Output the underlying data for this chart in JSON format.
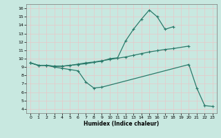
{
  "bg_color": "#c8e8e0",
  "grid_color_major": "#e8c8c8",
  "line_color": "#2a7a6a",
  "xlabel": "Humidex (Indice chaleur)",
  "xlim": [
    -0.5,
    23.5
  ],
  "ylim": [
    3.5,
    16.5
  ],
  "yticks": [
    4,
    5,
    6,
    7,
    8,
    9,
    10,
    11,
    12,
    13,
    14,
    15,
    16
  ],
  "xticks": [
    0,
    1,
    2,
    3,
    4,
    5,
    6,
    7,
    8,
    9,
    10,
    11,
    12,
    13,
    14,
    15,
    16,
    17,
    18,
    19,
    20,
    21,
    22,
    23
  ],
  "series1_x": [
    0,
    1,
    2,
    3,
    4,
    5,
    6,
    7,
    8,
    9,
    10,
    11,
    12,
    13,
    14,
    15,
    16,
    17,
    18
  ],
  "series1_y": [
    9.5,
    9.2,
    9.2,
    9.1,
    9.1,
    9.2,
    9.3,
    9.4,
    9.55,
    9.7,
    10.0,
    10.1,
    12.1,
    13.5,
    14.7,
    15.8,
    15.0,
    13.5,
    13.8
  ],
  "series2_x": [
    0,
    1,
    2,
    3,
    4,
    5,
    6,
    7,
    8,
    9,
    20,
    21,
    22,
    23
  ],
  "series2_y": [
    9.5,
    9.2,
    9.2,
    9.0,
    8.85,
    8.7,
    8.55,
    7.2,
    6.5,
    6.6,
    9.3,
    6.5,
    4.4,
    4.3
  ],
  "series2_gap_connect": true,
  "series3_x": [
    0,
    1,
    2,
    3,
    4,
    5,
    6,
    7,
    8,
    9,
    10,
    11,
    12,
    13,
    14,
    15,
    16,
    17,
    18,
    20
  ],
  "series3_y": [
    9.5,
    9.2,
    9.2,
    9.1,
    9.1,
    9.2,
    9.35,
    9.5,
    9.6,
    9.75,
    9.9,
    10.05,
    10.2,
    10.4,
    10.6,
    10.8,
    10.95,
    11.1,
    11.2,
    11.5
  ]
}
